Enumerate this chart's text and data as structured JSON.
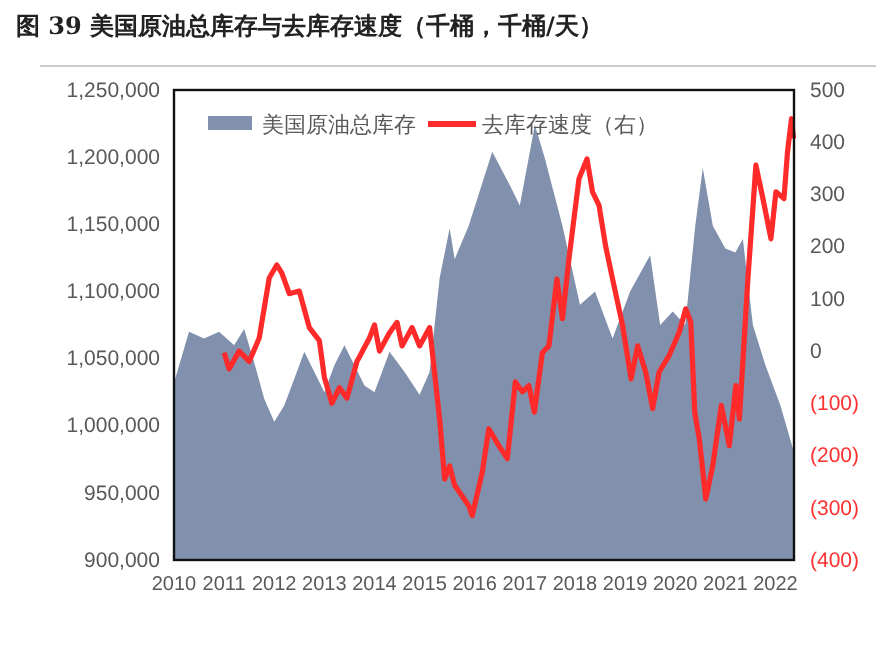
{
  "chart_data": {
    "type": "area",
    "title": "图 39  美国原油总库存与去库存速度（千桶，千桶/天）",
    "xlim": [
      2010,
      2022.37
    ],
    "xticks": [
      2010,
      2011,
      2012,
      2013,
      2014,
      2015,
      2016,
      2017,
      2018,
      2019,
      2020,
      2021,
      2022
    ],
    "ylim": [
      900000,
      1250000
    ],
    "yticks": [
      {
        "value": 900000,
        "label": "900,000"
      },
      {
        "value": 950000,
        "label": "950,000"
      },
      {
        "value": 1000000,
        "label": "1,000,000"
      },
      {
        "value": 1050000,
        "label": "1,050,000"
      },
      {
        "value": 1100000,
        "label": "1,100,000"
      },
      {
        "value": 1150000,
        "label": "1,150,000"
      },
      {
        "value": 1200000,
        "label": "1,200,000"
      },
      {
        "value": 1250000,
        "label": "1,250,000"
      }
    ],
    "y2lim": [
      -400,
      500
    ],
    "y2ticks": [
      {
        "value": -400,
        "label": "(400)"
      },
      {
        "value": -300,
        "label": "(300)"
      },
      {
        "value": -200,
        "label": "(200)"
      },
      {
        "value": -100,
        "label": "(100)"
      },
      0,
      100,
      200,
      300,
      400,
      500
    ],
    "legend": "top",
    "grid": false,
    "series": [
      {
        "name": "美国原油总库存",
        "color": "#8190ad",
        "x": [
          2010,
          2010.3,
          2010.6,
          2010.9,
          2011.2,
          2011.4,
          2011.6,
          2011.8,
          2012,
          2012.2,
          2012.4,
          2012.6,
          2012.8,
          2013,
          2013.2,
          2013.4,
          2013.6,
          2013.8,
          2014,
          2014.3,
          2014.6,
          2014.9,
          2015.1,
          2015.3,
          2015.5,
          2015.6,
          2015.88,
          2016.35,
          2016.7,
          2016.9,
          2017.2,
          2017.4,
          2017.75,
          2018.1,
          2018.4,
          2018.75,
          2019.1,
          2019.5,
          2019.7,
          2019.95,
          2020.2,
          2020.4,
          2020.55,
          2020.75,
          2021,
          2021.2,
          2021.35,
          2021.55,
          2021.8,
          2022.1,
          2022.37
        ],
        "values": [
          1032000,
          1070000,
          1065000,
          1070000,
          1060000,
          1072000,
          1047000,
          1020000,
          1003000,
          1015000,
          1035000,
          1055000,
          1040000,
          1025000,
          1045000,
          1060000,
          1045000,
          1030000,
          1025000,
          1055000,
          1040000,
          1023000,
          1040000,
          1110000,
          1147000,
          1124000,
          1149000,
          1204000,
          1179000,
          1164000,
          1224000,
          1199000,
          1149000,
          1090000,
          1100000,
          1065000,
          1100000,
          1127000,
          1075000,
          1085000,
          1075000,
          1149000,
          1192000,
          1149000,
          1132000,
          1129000,
          1139000,
          1075000,
          1045000,
          1015000,
          980000
        ]
      },
      {
        "name": "去库存速度（右）",
        "type": "line",
        "axis": "y2",
        "color": "#ff2a2a",
        "x": [
          2011,
          2011.1,
          2011.3,
          2011.5,
          2011.7,
          2011.9,
          2012.05,
          2012.15,
          2012.3,
          2012.5,
          2012.7,
          2012.9,
          2013,
          2013.15,
          2013.3,
          2013.45,
          2013.65,
          2013.9,
          2014,
          2014.1,
          2014.3,
          2014.45,
          2014.55,
          2014.75,
          2014.9,
          2015.1,
          2015.3,
          2015.4,
          2015.5,
          2015.6,
          2015.88,
          2015.95,
          2016.15,
          2016.28,
          2016.48,
          2016.65,
          2016.81,
          2016.95,
          2017.08,
          2017.19,
          2017.35,
          2017.48,
          2017.64,
          2017.75,
          2017.88,
          2018.08,
          2018.24,
          2018.35,
          2018.48,
          2018.61,
          2018.75,
          2018.95,
          2019.12,
          2019.25,
          2019.41,
          2019.55,
          2019.68,
          2019.88,
          2020.08,
          2020.21,
          2020.31,
          2020.39,
          2020.48,
          2020.61,
          2020.75,
          2020.92,
          2021.08,
          2021.21,
          2021.28,
          2021.45,
          2021.61,
          2021.75,
          2021.91,
          2022.01,
          2022.17,
          2022.24,
          2022.32,
          2022.36
        ],
        "values": [
          -3,
          -34,
          0,
          -20,
          25,
          140,
          165,
          150,
          110,
          115,
          45,
          20,
          -50,
          -100,
          -70,
          -90,
          -20,
          25,
          50,
          0,
          35,
          55,
          10,
          45,
          10,
          45,
          -130,
          -245,
          -220,
          -257,
          -296,
          -315,
          -232,
          -149,
          -181,
          -206,
          -59,
          -78,
          -66,
          -117,
          -3,
          10,
          138,
          62,
          177,
          330,
          368,
          305,
          279,
          202,
          138,
          49,
          -53,
          10,
          -40,
          -110,
          -40,
          -8,
          36,
          81,
          56,
          -117,
          -168,
          -283,
          -219,
          -104,
          -181,
          -66,
          -130,
          138,
          356,
          292,
          215,
          305,
          292,
          381,
          445,
          407
        ]
      }
    ]
  }
}
